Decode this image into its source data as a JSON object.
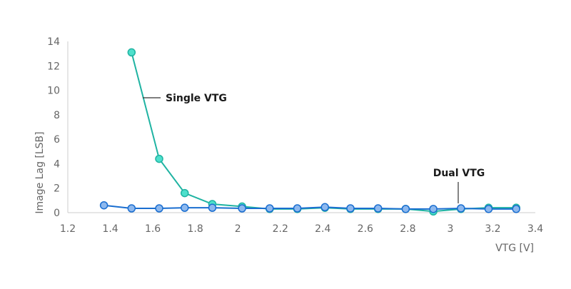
{
  "chart_data": {
    "type": "line",
    "xlabel": "VTG [V]",
    "ylabel": "Image Lag [LSB]",
    "xlim": [
      1.2,
      3.4
    ],
    "ylim": [
      0,
      14
    ],
    "xticks": [
      1.2,
      1.4,
      1.6,
      1.8,
      2,
      2.2,
      2.4,
      2.6,
      2.8,
      3,
      3.2,
      3.4
    ],
    "yticks": [
      0,
      2,
      4,
      6,
      8,
      10,
      12,
      14
    ],
    "grid": false,
    "series": [
      {
        "name": "Single VTG",
        "color": "#1fb3a2",
        "marker_fill": "#4ee0cc",
        "x": [
          1.5,
          1.63,
          1.75,
          1.88,
          2.02,
          2.15,
          2.28,
          2.41,
          2.53,
          2.66,
          2.79,
          2.92,
          3.05,
          3.18,
          3.31
        ],
        "y": [
          13.1,
          4.4,
          1.6,
          0.7,
          0.5,
          0.3,
          0.3,
          0.4,
          0.3,
          0.3,
          0.3,
          0.1,
          0.3,
          0.4,
          0.4
        ]
      },
      {
        "name": "Dual VTG",
        "color": "#1a6ed0",
        "marker_fill": "#8db8ee",
        "x": [
          1.37,
          1.5,
          1.63,
          1.75,
          1.88,
          2.02,
          2.15,
          2.28,
          2.41,
          2.53,
          2.66,
          2.79,
          2.92,
          3.05,
          3.18,
          3.31
        ],
        "y": [
          0.6,
          0.35,
          0.35,
          0.4,
          0.4,
          0.35,
          0.35,
          0.35,
          0.45,
          0.35,
          0.35,
          0.3,
          0.3,
          0.35,
          0.3,
          0.3
        ]
      }
    ],
    "annotations": [
      {
        "text": "Single VTG",
        "series": "Single VTG",
        "leader": "horizontal"
      },
      {
        "text": "Dual VTG",
        "series": "Dual VTG",
        "leader": "vertical"
      }
    ]
  }
}
